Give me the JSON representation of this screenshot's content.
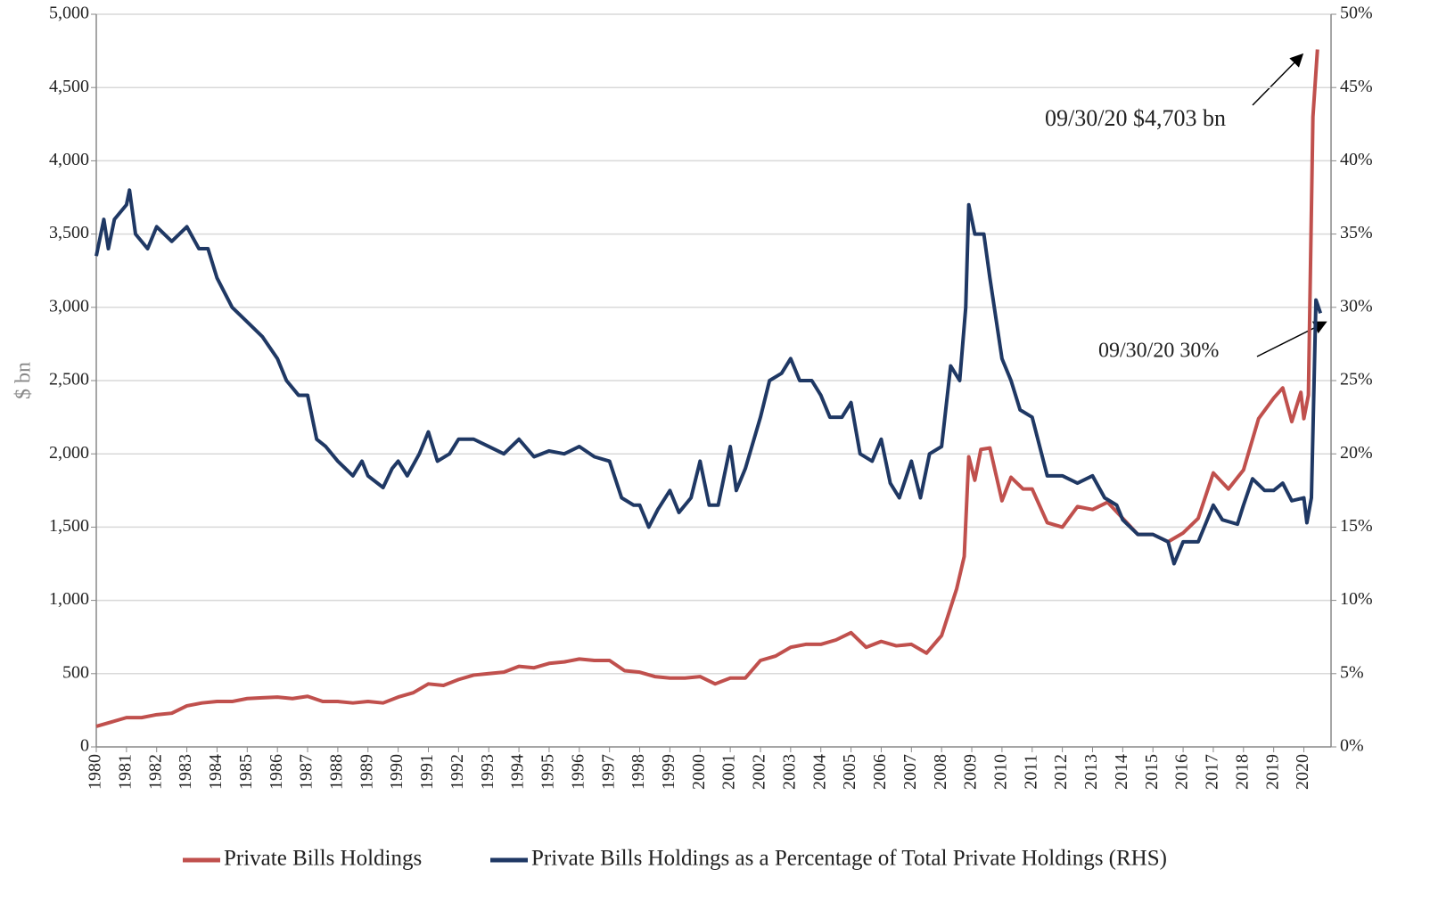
{
  "chart_data": {
    "type": "line",
    "ylabel": "$ bn",
    "xlim": [
      1980,
      2020.9
    ],
    "xticks": [
      1980,
      1981,
      1982,
      1983,
      1984,
      1985,
      1986,
      1987,
      1988,
      1989,
      1990,
      1991,
      1992,
      1993,
      1994,
      1995,
      1996,
      1997,
      1998,
      1999,
      2000,
      2001,
      2002,
      2003,
      2004,
      2005,
      2006,
      2007,
      2008,
      2009,
      2010,
      2011,
      2012,
      2013,
      2014,
      2015,
      2016,
      2017,
      2018,
      2019,
      2020
    ],
    "ylim": [
      0,
      5000
    ],
    "yticks": [
      0,
      500,
      {
        "value": 1000,
        "label": "1,000"
      },
      {
        "value": 1500,
        "label": "1,500"
      },
      {
        "value": 2000,
        "label": "2,000"
      },
      {
        "value": 2500,
        "label": "2,500"
      },
      {
        "value": 3000,
        "label": "3,000"
      },
      {
        "value": 3500,
        "label": "3,500"
      },
      {
        "value": 4000,
        "label": "4,000"
      },
      {
        "value": 4500,
        "label": "4,500"
      },
      {
        "value": 5000,
        "label": "5,000"
      }
    ],
    "y2lim": [
      0,
      50
    ],
    "y2ticks": [
      {
        "value": 0,
        "label": "0%"
      },
      {
        "value": 5,
        "label": "5%"
      },
      {
        "value": 10,
        "label": "10%"
      },
      {
        "value": 15,
        "label": "15%"
      },
      {
        "value": 20,
        "label": "20%"
      },
      {
        "value": 25,
        "label": "25%"
      },
      {
        "value": 30,
        "label": "30%"
      },
      {
        "value": 35,
        "label": "35%"
      },
      {
        "value": 40,
        "label": "40%"
      },
      {
        "value": 45,
        "label": "45%"
      },
      {
        "value": 50,
        "label": "50%"
      }
    ],
    "grid": true,
    "legend": "bottom",
    "annotations": [
      "09/30/20   $4,703 bn",
      "09/30/20   30%"
    ],
    "series": [
      {
        "name": "Private Bills Holdings",
        "color": "#c0504d",
        "x": [
          1980,
          1980.5,
          1981,
          1981.5,
          1982,
          1982.5,
          1983,
          1983.5,
          1984,
          1984.5,
          1985,
          1985.5,
          1986,
          1986.5,
          1987,
          1987.5,
          1988,
          1988.5,
          1989,
          1989.5,
          1990,
          1990.5,
          1991,
          1991.5,
          1992,
          1992.5,
          1993,
          1993.5,
          1994,
          1994.5,
          1995,
          1995.5,
          1996,
          1996.5,
          1997,
          1997.5,
          1998,
          1998.5,
          1999,
          1999.5,
          2000,
          2000.5,
          2001,
          2001.5,
          2002,
          2002.5,
          2003,
          2003.5,
          2004,
          2004.5,
          2005,
          2005.5,
          2006,
          2006.5,
          2007,
          2007.5,
          2008,
          2008.5,
          2008.75,
          2008.9,
          2009.1,
          2009.3,
          2009.6,
          2010,
          2010.3,
          2010.7,
          2011,
          2011.5,
          2012,
          2012.5,
          2013,
          2013.5,
          2014,
          2014.5,
          2015,
          2015.5,
          2016,
          2016.5,
          2017,
          2017.5,
          2018,
          2018.5,
          2019,
          2019.3,
          2019.6,
          2019.9,
          2020,
          2020.15,
          2020.3,
          2020.45
        ],
        "values": [
          140,
          170,
          200,
          200,
          220,
          230,
          280,
          300,
          310,
          310,
          330,
          335,
          340,
          330,
          345,
          310,
          310,
          300,
          310,
          300,
          340,
          370,
          430,
          420,
          460,
          490,
          500,
          510,
          550,
          540,
          570,
          580,
          600,
          590,
          590,
          520,
          510,
          480,
          470,
          470,
          480,
          430,
          470,
          470,
          590,
          620,
          680,
          700,
          700,
          730,
          780,
          680,
          720,
          690,
          700,
          640,
          760,
          1080,
          1300,
          1980,
          1820,
          2030,
          2040,
          1680,
          1840,
          1760,
          1760,
          1530,
          1500,
          1640,
          1620,
          1670,
          1560,
          1450,
          1450,
          1400,
          1460,
          1560,
          1870,
          1760,
          1890,
          2240,
          2380,
          2450,
          2220,
          2420,
          2240,
          2400,
          4300,
          4760
        ]
      },
      {
        "name": "Private Bills Holdings as a Percentage of Total Private Holdings (RHS)",
        "color": "#1f3864",
        "axis": "y2",
        "x": [
          1980,
          1980.25,
          1980.4,
          1980.6,
          1981,
          1981.1,
          1981.3,
          1981.7,
          1982,
          1982.5,
          1983,
          1983.4,
          1983.7,
          1984,
          1984.5,
          1985,
          1985.5,
          1986,
          1986.3,
          1986.7,
          1987,
          1987.3,
          1987.6,
          1988,
          1988.5,
          1988.8,
          1989,
          1989.5,
          1989.8,
          1990,
          1990.3,
          1990.7,
          1991,
          1991.3,
          1991.7,
          1992,
          1992.5,
          1993,
          1993.5,
          1994,
          1994.5,
          1995,
          1995.5,
          1996,
          1996.5,
          1997,
          1997.4,
          1997.8,
          1998,
          1998.3,
          1998.6,
          1999,
          1999.3,
          1999.7,
          2000,
          2000.3,
          2000.6,
          2001,
          2001.2,
          2001.5,
          2002,
          2002.3,
          2002.7,
          2003,
          2003.3,
          2003.7,
          2004,
          2004.3,
          2004.7,
          2005,
          2005.3,
          2005.7,
          2006,
          2006.3,
          2006.6,
          2007,
          2007.3,
          2007.6,
          2008,
          2008.3,
          2008.6,
          2008.8,
          2008.9,
          2009.1,
          2009.4,
          2009.6,
          2010,
          2010.3,
          2010.6,
          2011,
          2011.5,
          2012,
          2012.5,
          2013,
          2013.4,
          2013.8,
          2014,
          2014.5,
          2015,
          2015.5,
          2015.7,
          2016,
          2016.5,
          2017,
          2017.3,
          2017.8,
          2018,
          2018.3,
          2018.7,
          2019,
          2019.3,
          2019.6,
          2020,
          2020.1,
          2020.25,
          2020.4,
          2020.55
        ],
        "values": [
          33.5,
          36,
          34,
          36,
          37,
          38,
          35,
          34,
          35.5,
          34.5,
          35.5,
          34,
          34,
          32,
          30,
          29,
          28,
          26.5,
          25,
          24,
          24,
          21,
          20.5,
          19.5,
          18.5,
          19.5,
          18.5,
          17.7,
          19,
          19.5,
          18.5,
          20,
          21.5,
          19.5,
          20,
          21,
          21,
          20.5,
          20,
          21,
          19.8,
          20.2,
          20,
          20.5,
          19.8,
          19.5,
          17,
          16.5,
          16.5,
          15,
          16.2,
          17.5,
          16,
          17,
          19.5,
          16.5,
          16.5,
          20.5,
          17.5,
          19,
          22.5,
          25,
          25.5,
          26.5,
          25,
          25,
          24,
          22.5,
          22.5,
          23.5,
          20,
          19.5,
          21,
          18,
          17,
          19.5,
          17,
          20,
          20.5,
          26,
          25,
          30,
          37,
          35,
          35,
          32,
          26.5,
          25,
          23,
          22.5,
          18.5,
          18.5,
          18,
          18.5,
          17,
          16.5,
          15.5,
          14.5,
          14.5,
          14,
          12.5,
          14,
          14,
          16.5,
          15.5,
          15.2,
          16.5,
          18.3,
          17.5,
          17.5,
          18,
          16.8,
          17,
          15.3,
          17,
          30.5,
          29.6
        ]
      }
    ]
  }
}
